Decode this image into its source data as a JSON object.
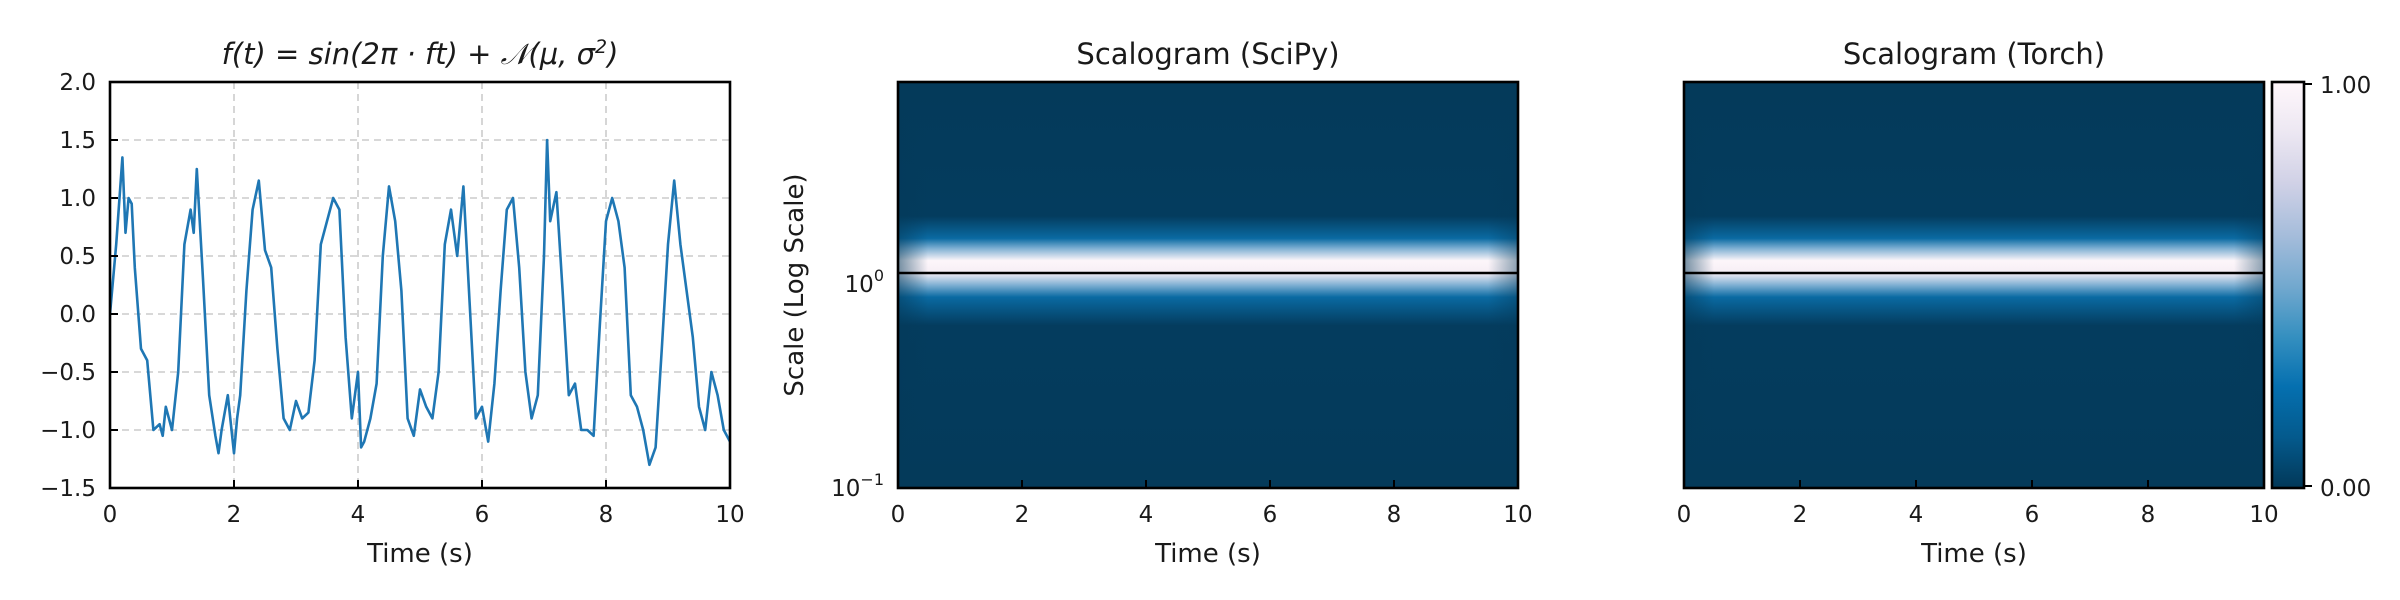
{
  "colors": {
    "signal_line": "#1f77b4",
    "grid": "#cccccc",
    "colormap": [
      "#023858",
      "#045a8d",
      "#0570b0",
      "#3690c0",
      "#74a9cf",
      "#a6bddb",
      "#d0d1e6",
      "#ece7f2",
      "#fff7fb"
    ]
  },
  "chart_data": [
    {
      "type": "line",
      "title_prefix": "f(t) = sin(2π · ft) + ",
      "title_suffix": "(μ, σ",
      "title_noise_symbol": "𝒩",
      "title_exponent": "2",
      "title_close": ")",
      "xlabel": "Time (s)",
      "ylabel": "",
      "xlim": [
        0,
        10
      ],
      "ylim": [
        -1.5,
        2.0
      ],
      "xticks": [
        "0",
        "2",
        "4",
        "6",
        "8",
        "10"
      ],
      "yticks": [
        "−1.5",
        "−1.0",
        "−0.5",
        "0.0",
        "0.5",
        "1.0",
        "1.5",
        "2.0"
      ],
      "grid": true,
      "series": [
        {
          "x": [
            0.0,
            0.1,
            0.2,
            0.25,
            0.3,
            0.35,
            0.4,
            0.5,
            0.6,
            0.7,
            0.8,
            0.85,
            0.9,
            1.0,
            1.1,
            1.2,
            1.3,
            1.35,
            1.4,
            1.5,
            1.6,
            1.7,
            1.75,
            1.8,
            1.9,
            2.0,
            2.05,
            2.1,
            2.2,
            2.3,
            2.4,
            2.5,
            2.6,
            2.7,
            2.8,
            2.9,
            3.0,
            3.1,
            3.2,
            3.3,
            3.4,
            3.5,
            3.6,
            3.7,
            3.8,
            3.9,
            4.0,
            4.05,
            4.1,
            4.2,
            4.3,
            4.4,
            4.5,
            4.6,
            4.7,
            4.8,
            4.9,
            5.0,
            5.1,
            5.2,
            5.3,
            5.4,
            5.5,
            5.6,
            5.7,
            5.8,
            5.9,
            6.0,
            6.1,
            6.2,
            6.3,
            6.4,
            6.5,
            6.6,
            6.7,
            6.8,
            6.9,
            7.0,
            7.05,
            7.1,
            7.2,
            7.3,
            7.4,
            7.5,
            7.6,
            7.7,
            7.8,
            7.9,
            8.0,
            8.1,
            8.2,
            8.3,
            8.4,
            8.5,
            8.6,
            8.7,
            8.8,
            8.9,
            9.0,
            9.1,
            9.2,
            9.3,
            9.4,
            9.5,
            9.6,
            9.7,
            9.8,
            9.9,
            10.0
          ],
          "y": [
            0.0,
            0.6,
            1.35,
            0.7,
            1.0,
            0.95,
            0.4,
            -0.3,
            -0.4,
            -1.0,
            -0.95,
            -1.05,
            -0.8,
            -1.0,
            -0.5,
            0.6,
            0.9,
            0.7,
            1.25,
            0.3,
            -0.7,
            -1.05,
            -1.2,
            -1.0,
            -0.7,
            -1.2,
            -0.9,
            -0.7,
            0.2,
            0.9,
            1.15,
            0.55,
            0.4,
            -0.3,
            -0.9,
            -1.0,
            -0.75,
            -0.9,
            -0.85,
            -0.4,
            0.6,
            0.8,
            1.0,
            0.9,
            -0.2,
            -0.9,
            -0.5,
            -1.15,
            -1.1,
            -0.9,
            -0.6,
            0.5,
            1.1,
            0.8,
            0.2,
            -0.9,
            -1.05,
            -0.65,
            -0.8,
            -0.9,
            -0.5,
            0.6,
            0.9,
            0.5,
            1.1,
            0.1,
            -0.9,
            -0.8,
            -1.1,
            -0.6,
            0.2,
            0.9,
            1.0,
            0.4,
            -0.5,
            -0.9,
            -0.7,
            0.5,
            1.5,
            0.8,
            1.05,
            0.2,
            -0.7,
            -0.6,
            -1.0,
            -1.0,
            -1.05,
            -0.1,
            0.8,
            1.0,
            0.8,
            0.4,
            -0.7,
            -0.8,
            -1.0,
            -1.3,
            -1.15,
            -0.3,
            0.6,
            1.15,
            0.6,
            0.2,
            -0.2,
            -0.8,
            -1.0,
            -0.5,
            -0.7,
            -1.0,
            -1.1
          ]
        }
      ]
    },
    {
      "type": "heatmap",
      "title": "Scalogram (SciPy)",
      "xlabel": "Time (s)",
      "ylabel": "Scale (Log Scale)",
      "xlim": [
        0,
        10
      ],
      "xticks": [
        "0",
        "2",
        "4",
        "6",
        "8",
        "10"
      ],
      "yscale": "log",
      "yticks": [
        {
          "base": "10",
          "exp": "−1"
        },
        {
          "base": "10",
          "exp": "0"
        }
      ],
      "ridge_scale": 1.0,
      "colormap": "PuBu_r"
    },
    {
      "type": "heatmap",
      "title": "Scalogram (Torch)",
      "xlabel": "Time (s)",
      "xlim": [
        0,
        10
      ],
      "xticks": [
        "0",
        "2",
        "4",
        "6",
        "8",
        "10"
      ],
      "yscale": "log",
      "ridge_scale": 1.0,
      "colormap": "PuBu_r",
      "colorbar": {
        "ticks": [
          "0.00",
          "1.00"
        ],
        "range": [
          0,
          1
        ]
      }
    }
  ]
}
